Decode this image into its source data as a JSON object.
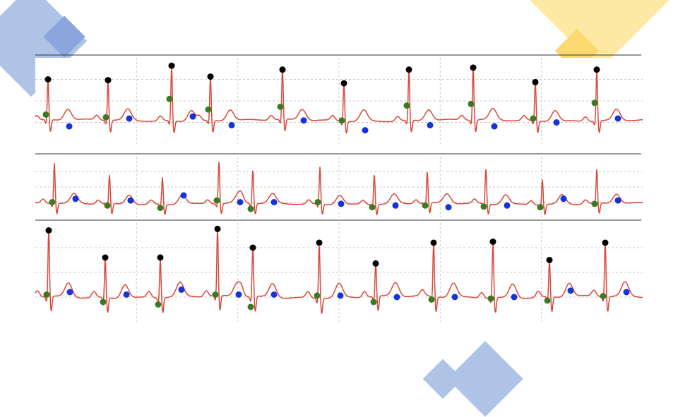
{
  "colors": {
    "ecg": "#d9473b",
    "grid": "#c9c9c9",
    "frame": "#333333",
    "r_peak": "#000000",
    "p_wave": "#3c7a22",
    "t_wave": "#1533d6",
    "deco_blue": "#aec3e6",
    "deco_blue_dark": "#8aa6dc",
    "deco_yellow": "#fde9a4",
    "deco_yellow_dark": "#fbd970"
  },
  "chart_data": [
    {
      "type": "line",
      "strip": 1,
      "duration_s": 8.6,
      "ylim": [
        -0.6,
        1.6
      ],
      "grid": true,
      "markers": [
        "r_peak",
        "p_wave",
        "t_wave"
      ],
      "beats": [
        {
          "t": 0.18,
          "r": 1.05,
          "p": 0.15,
          "t_wave": -0.15
        },
        {
          "t": 1.03,
          "r": 1.03,
          "p": 0.08,
          "t_wave": 0.05
        },
        {
          "t": 1.93,
          "r": 1.4,
          "p": 0.55,
          "t_wave": 0.1
        },
        {
          "t": 2.48,
          "r": 1.12,
          "p": 0.28,
          "t_wave": -0.12
        },
        {
          "t": 3.5,
          "r": 1.3,
          "p": 0.35,
          "t_wave": 0.0
        },
        {
          "t": 4.37,
          "r": 0.95,
          "p": 0.0,
          "t_wave": -0.25
        },
        {
          "t": 5.29,
          "r": 1.3,
          "p": 0.38,
          "t_wave": -0.12
        },
        {
          "t": 6.2,
          "r": 1.35,
          "p": 0.42,
          "t_wave": -0.15
        },
        {
          "t": 7.08,
          "r": 0.98,
          "p": 0.05,
          "t_wave": -0.05
        },
        {
          "t": 7.95,
          "r": 1.3,
          "p": 0.45,
          "t_wave": 0.05
        }
      ]
    },
    {
      "type": "line",
      "strip": 2,
      "duration_s": 8.6,
      "ylim": [
        -0.4,
        1.4
      ],
      "grid": true,
      "markers": [
        "p_wave",
        "t_wave"
      ],
      "beats": [
        {
          "t": 0.27,
          "r": 1.2,
          "p": 0.05,
          "t_wave": 0.15
        },
        {
          "t": 1.05,
          "r": 0.85,
          "p": -0.05,
          "t_wave": 0.1
        },
        {
          "t": 1.8,
          "r": 0.8,
          "p": -0.12,
          "t_wave": 0.25
        },
        {
          "t": 2.6,
          "r": 1.25,
          "p": 0.1,
          "t_wave": 0.05
        },
        {
          "t": 3.08,
          "r": 1.0,
          "p": -0.15,
          "t_wave": 0.05
        },
        {
          "t": 4.03,
          "r": 1.1,
          "p": 0.05,
          "t_wave": 0.0
        },
        {
          "t": 4.8,
          "r": 0.9,
          "p": -0.1,
          "t_wave": -0.05
        },
        {
          "t": 5.55,
          "r": 0.95,
          "p": -0.05,
          "t_wave": -0.1
        },
        {
          "t": 6.38,
          "r": 1.05,
          "p": -0.08,
          "t_wave": -0.05
        },
        {
          "t": 7.18,
          "r": 0.75,
          "p": -0.1,
          "t_wave": 0.15
        },
        {
          "t": 7.95,
          "r": 1.0,
          "p": 0.0,
          "t_wave": 0.1
        }
      ]
    },
    {
      "type": "line",
      "strip": 3,
      "duration_s": 8.6,
      "ylim": [
        -0.5,
        1.5
      ],
      "grid": true,
      "markers": [
        "r_peak",
        "p_wave",
        "t_wave"
      ],
      "beats": [
        {
          "t": 0.19,
          "r": 1.35,
          "p": 0.05,
          "t_wave": 0.1
        },
        {
          "t": 0.99,
          "r": 0.8,
          "p": -0.1,
          "t_wave": 0.05
        },
        {
          "t": 1.77,
          "r": 0.8,
          "p": -0.15,
          "t_wave": 0.15
        },
        {
          "t": 2.58,
          "r": 1.38,
          "p": 0.05,
          "t_wave": 0.05
        },
        {
          "t": 3.08,
          "r": 1.0,
          "p": -0.2,
          "t_wave": 0.05
        },
        {
          "t": 4.02,
          "r": 1.1,
          "p": 0.03,
          "t_wave": 0.03
        },
        {
          "t": 4.82,
          "r": 0.68,
          "p": -0.1,
          "t_wave": 0.0
        },
        {
          "t": 5.64,
          "r": 1.1,
          "p": -0.05,
          "t_wave": 0.0
        },
        {
          "t": 6.48,
          "r": 1.12,
          "p": -0.03,
          "t_wave": 0.0
        },
        {
          "t": 7.28,
          "r": 0.75,
          "p": -0.07,
          "t_wave": 0.13
        },
        {
          "t": 8.07,
          "r": 1.1,
          "p": 0.02,
          "t_wave": 0.1
        }
      ]
    }
  ]
}
